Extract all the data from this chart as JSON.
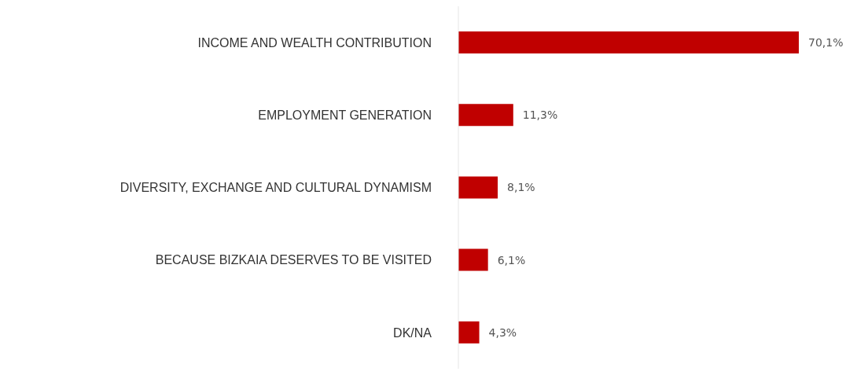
{
  "chart_data": {
    "type": "bar",
    "orientation": "horizontal",
    "categories": [
      "INCOME AND WEALTH CONTRIBUTION",
      "EMPLOYMENT GENERATION",
      "DIVERSITY, EXCHANGE AND CULTURAL DYNAMISM",
      "BECAUSE BIZKAIA DESERVES TO BE VISITED",
      "DK/NA"
    ],
    "values": [
      70.1,
      11.3,
      8.1,
      6.1,
      4.3
    ],
    "value_labels": [
      "70,1%",
      "11,3%",
      "8,1%",
      "6,1%",
      "4,3%"
    ],
    "color": "#c00000"
  }
}
